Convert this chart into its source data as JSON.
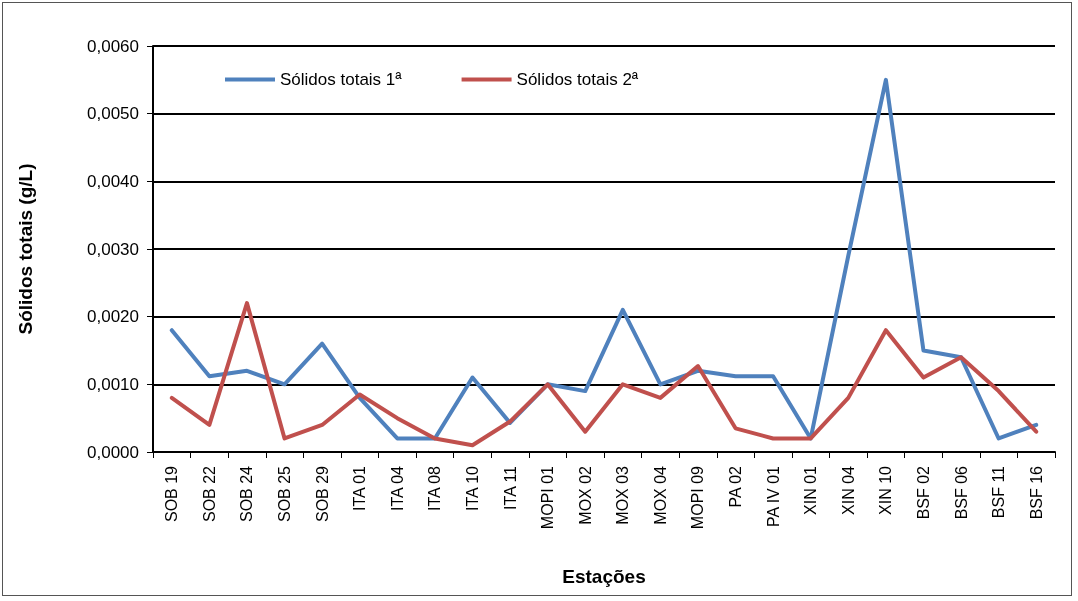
{
  "chart_data": {
    "type": "line",
    "xlabel": "Estações",
    "ylabel": "Sólidos totais (g/L)",
    "categories": [
      "SOB 19",
      "SOB 22",
      "SOB 24",
      "SOB 25",
      "SOB 29",
      "ITA 01",
      "ITA 04",
      "ITA 08",
      "ITA 10",
      "ITA 11",
      "MOPI 01",
      "MOX 02",
      "MOX 03",
      "MOX 04",
      "MOPI 09",
      "PA 02",
      "PA IV 01",
      "XIN 01",
      "XIN 04",
      "XIN 10",
      "BSF 02",
      "BSF 06",
      "BSF 11",
      "BSF 16"
    ],
    "series": [
      {
        "name": "Sólidos totais 1ª",
        "color": "#4f81bd",
        "values": [
          0.0018,
          0.00112,
          0.0012,
          0.001,
          0.0016,
          0.0008,
          0.0002,
          0.0002,
          0.0011,
          0.00043,
          0.001,
          0.0009,
          0.0021,
          0.001,
          0.0012,
          0.00112,
          0.00112,
          0.0002,
          0.0029,
          0.0055,
          0.0015,
          0.0014,
          0.0002,
          0.0004
        ]
      },
      {
        "name": "Sólidos totais 2ª",
        "color": "#c0504d",
        "values": [
          0.0008,
          0.0004,
          0.0022,
          0.0002,
          0.0004,
          0.00085,
          0.0005,
          0.0002,
          0.0001,
          0.00045,
          0.001,
          0.0003,
          0.001,
          0.0008,
          0.00127,
          0.00035,
          0.0002,
          0.0002,
          0.0008,
          0.0018,
          0.0011,
          0.0014,
          0.0009,
          0.0003
        ]
      }
    ],
    "ylim": [
      0,
      0.006
    ],
    "yticks": [
      {
        "value": 0,
        "label": "0,0000"
      },
      {
        "value": 0.001,
        "label": "0,0010"
      },
      {
        "value": 0.002,
        "label": "0,0020"
      },
      {
        "value": 0.003,
        "label": "0,0030"
      },
      {
        "value": 0.004,
        "label": "0,0040"
      },
      {
        "value": 0.005,
        "label": "0,0050"
      },
      {
        "value": 0.006,
        "label": "0,0060"
      }
    ],
    "grid": "y",
    "legend": "top left",
    "marker": "none",
    "line_style": "solid"
  }
}
